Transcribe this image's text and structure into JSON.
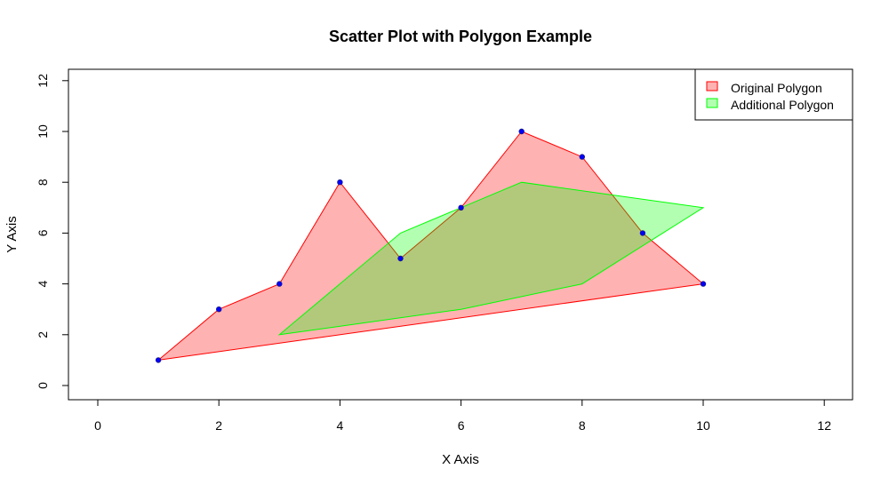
{
  "chart_data": {
    "type": "scatter",
    "title": "Scatter Plot with Polygon Example",
    "xlabel": "X Axis",
    "ylabel": "Y Axis",
    "xlim": [
      0,
      12
    ],
    "ylim": [
      0,
      12
    ],
    "x_ticks": [
      0,
      2,
      4,
      6,
      8,
      10,
      12
    ],
    "y_ticks": [
      0,
      2,
      4,
      6,
      8,
      10,
      12
    ],
    "grid": false,
    "legend_position": "top-right",
    "points": {
      "x": [
        1,
        2,
        3,
        4,
        5,
        6,
        7,
        8,
        9,
        10
      ],
      "y": [
        1,
        3,
        4,
        8,
        5,
        7,
        10,
        9,
        6,
        4
      ],
      "color": "#0000ff"
    },
    "series": [
      {
        "name": "Original Polygon",
        "x": [
          1,
          2,
          3,
          4,
          5,
          6,
          7,
          8,
          9,
          10
        ],
        "y": [
          1,
          3,
          4,
          8,
          5,
          7,
          10,
          9,
          6,
          4
        ],
        "fill": "#ff0000",
        "fill_opacity": 0.3,
        "stroke": "#ff0000"
      },
      {
        "name": "Additional Polygon",
        "x": [
          3,
          5,
          7,
          10,
          8,
          6
        ],
        "y": [
          2,
          6,
          8,
          7,
          4,
          3
        ],
        "fill": "#00ff00",
        "fill_opacity": 0.3,
        "stroke": "#00ff00"
      }
    ]
  }
}
